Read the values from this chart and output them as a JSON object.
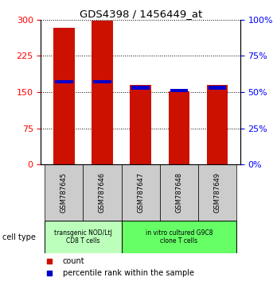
{
  "title": "GDS4398 / 1456449_at",
  "samples": [
    "GSM787645",
    "GSM787646",
    "GSM787647",
    "GSM787648",
    "GSM787649"
  ],
  "counts": [
    283,
    298,
    165,
    152,
    165
  ],
  "percentile_ranks": [
    57,
    57,
    53,
    51,
    53
  ],
  "ylim_left": [
    0,
    300
  ],
  "ylim_right": [
    0,
    100
  ],
  "yticks_left": [
    0,
    75,
    150,
    225,
    300
  ],
  "yticks_right": [
    0,
    25,
    50,
    75,
    100
  ],
  "bar_color": "#cc1100",
  "pct_color": "#0000cc",
  "group1_label": "transgenic NOD/LtJ\nCD8 T cells",
  "group2_label": "in vitro cultured G9C8\nclone T cells",
  "group1_indices": [
    0,
    1
  ],
  "group2_indices": [
    2,
    3,
    4
  ],
  "group1_color": "#bbffbb",
  "group2_color": "#66ff66",
  "xticklabels_bg": "#cccccc",
  "legend_count_label": "count",
  "legend_pct_label": "percentile rank within the sample",
  "cell_type_label": "cell type",
  "bar_width": 0.55
}
